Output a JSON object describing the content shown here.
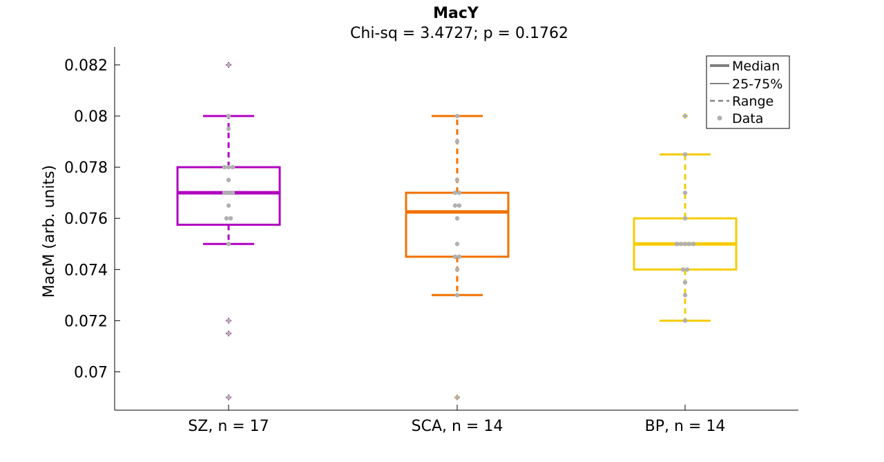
{
  "chart_data": {
    "type": "box",
    "title": "MacY",
    "subtitle": "Chi-sq = 3.4727; p = 0.1762",
    "xlabel": "",
    "ylabel": "MacM (arb. units)",
    "ylim": [
      0.0685,
      0.0827
    ],
    "yticks": [
      0.07,
      0.072,
      0.074,
      0.076,
      0.078,
      0.08,
      0.082
    ],
    "ytick_labels": [
      "0.07",
      "0.072",
      "0.074",
      "0.076",
      "0.078",
      "0.08",
      "0.082"
    ],
    "categories": [
      "SZ, n = 17",
      "SCA, n = 14",
      "BP, n = 14"
    ],
    "grid": false,
    "legend_position": "top-right",
    "legend": {
      "median": "Median",
      "iqr": "25-75%",
      "range": "Range",
      "data": "Data"
    },
    "data_color": "#b0b0b0",
    "legend_color": "#808080",
    "groups": [
      {
        "color": "#b000c0",
        "median": 0.077,
        "q1": 0.07575,
        "q3": 0.078,
        "whisker_low": 0.075,
        "whisker_high": 0.08,
        "outliers": [
          0.082,
          0.072,
          0.0715,
          0.069
        ],
        "points": [
          0.082,
          0.08,
          0.0795,
          0.078,
          0.078,
          0.078,
          0.0775,
          0.077,
          0.077,
          0.077,
          0.0765,
          0.076,
          0.076,
          0.075,
          0.072,
          0.0715,
          0.069
        ]
      },
      {
        "color": "#f07000",
        "median": 0.07625,
        "q1": 0.0745,
        "q3": 0.077,
        "whisker_low": 0.073,
        "whisker_high": 0.08,
        "outliers": [
          0.069
        ],
        "points": [
          0.08,
          0.079,
          0.0775,
          0.077,
          0.077,
          0.0765,
          0.0765,
          0.076,
          0.075,
          0.0745,
          0.0745,
          0.074,
          0.073,
          0.069
        ]
      },
      {
        "color": "#f5cc00",
        "median": 0.075,
        "q1": 0.074,
        "q3": 0.076,
        "whisker_low": 0.072,
        "whisker_high": 0.0785,
        "outliers": [
          0.08
        ],
        "points": [
          0.08,
          0.0785,
          0.077,
          0.076,
          0.075,
          0.075,
          0.075,
          0.075,
          0.075,
          0.074,
          0.074,
          0.0735,
          0.073,
          0.072
        ]
      }
    ]
  }
}
